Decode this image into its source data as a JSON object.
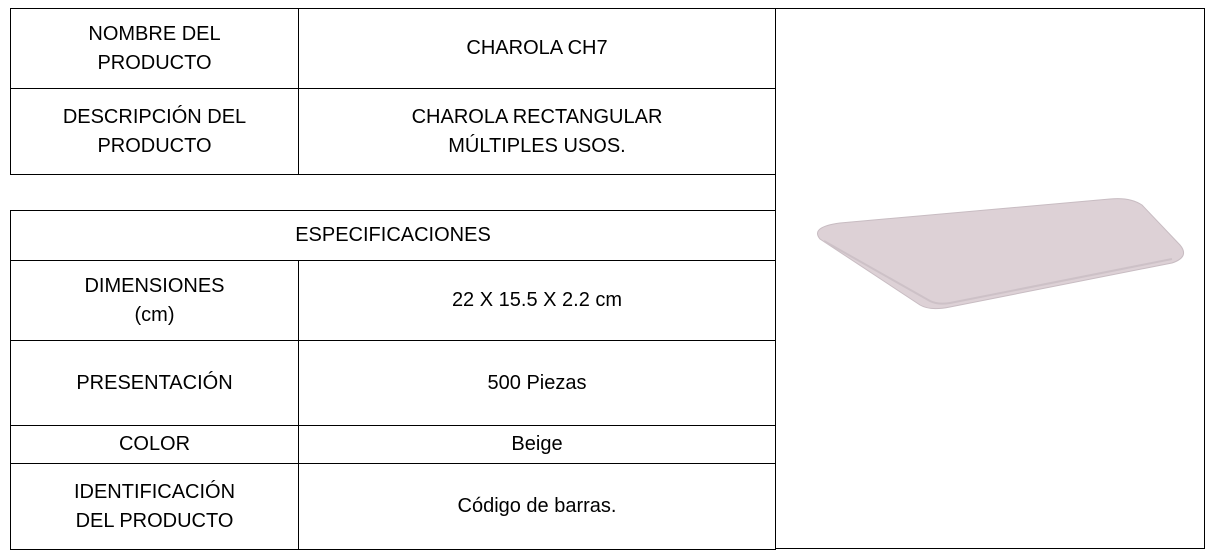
{
  "header_rows": [
    {
      "label": [
        "NOMBRE DEL",
        "PRODUCTO"
      ],
      "value": [
        "CHAROLA CH7"
      ]
    },
    {
      "label": [
        "DESCRIPCIÓN  DEL",
        "PRODUCTO"
      ],
      "value": [
        "CHAROLA RECTANGULAR",
        "MÚLTIPLES USOS."
      ]
    }
  ],
  "section_title": "ESPECIFICACIONES",
  "spec_rows": [
    {
      "label": [
        "DIMENSIONES",
        "(cm)"
      ],
      "value": [
        "22 X 15.5 X 2.2 cm"
      ]
    },
    {
      "label": [
        "PRESENTACIÓN"
      ],
      "value": [
        "500 Piezas"
      ]
    },
    {
      "label": [
        "COLOR"
      ],
      "value": [
        "Beige"
      ]
    },
    {
      "label": [
        "IDENTIFICACIÓN",
        "DEL PRODUCTO"
      ],
      "value": [
        "Código de barras."
      ]
    }
  ]
}
